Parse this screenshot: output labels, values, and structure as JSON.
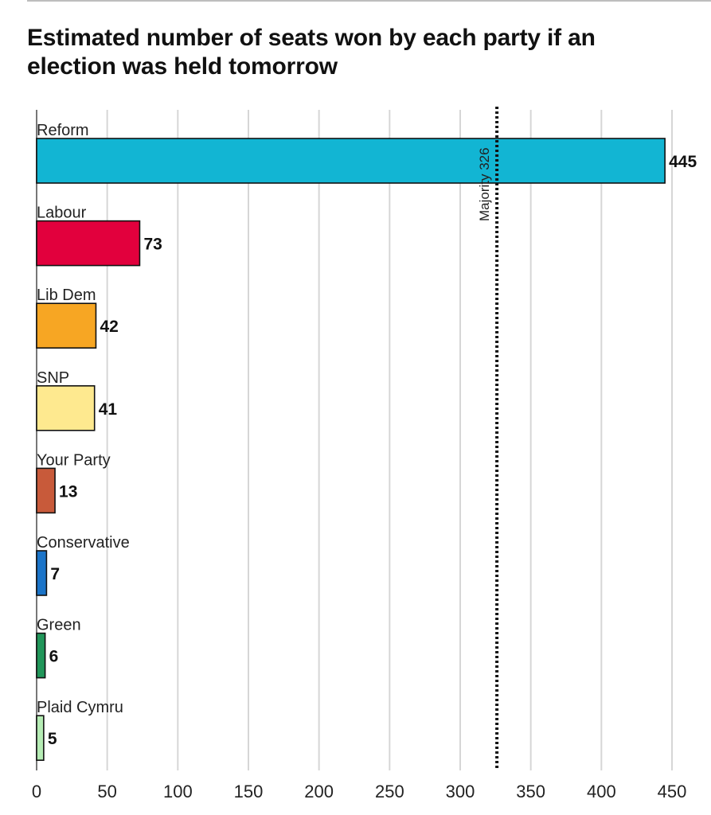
{
  "chart_data": {
    "type": "bar",
    "orientation": "horizontal",
    "title_lines": [
      "Estimated number of seats won by each party if an",
      "election was held tomorrow"
    ],
    "categories": [
      "Reform",
      "Labour",
      "Lib Dem",
      "SNP",
      "Your Party",
      "Conservative",
      "Green",
      "Plaid Cymru"
    ],
    "values": [
      445,
      73,
      42,
      41,
      13,
      7,
      6,
      5
    ],
    "value_labels": [
      "445",
      "73",
      "42",
      "41",
      "13",
      "7",
      "6",
      "5"
    ],
    "colors": [
      "#12b5d3",
      "#e2003d",
      "#f7a623",
      "#fee98f",
      "#c85a3a",
      "#1b74c8",
      "#21965a",
      "#b5ecb4"
    ],
    "xticks": [
      0,
      50,
      100,
      150,
      200,
      250,
      300,
      350,
      400,
      450
    ],
    "xtick_labels": [
      "0",
      "50",
      "100",
      "150",
      "200",
      "250",
      "300",
      "350",
      "400",
      "450"
    ],
    "xlim": [
      0,
      450
    ],
    "grid": true,
    "reference_line": {
      "value": 326,
      "label": "Majority 326",
      "style": "dotted"
    }
  }
}
